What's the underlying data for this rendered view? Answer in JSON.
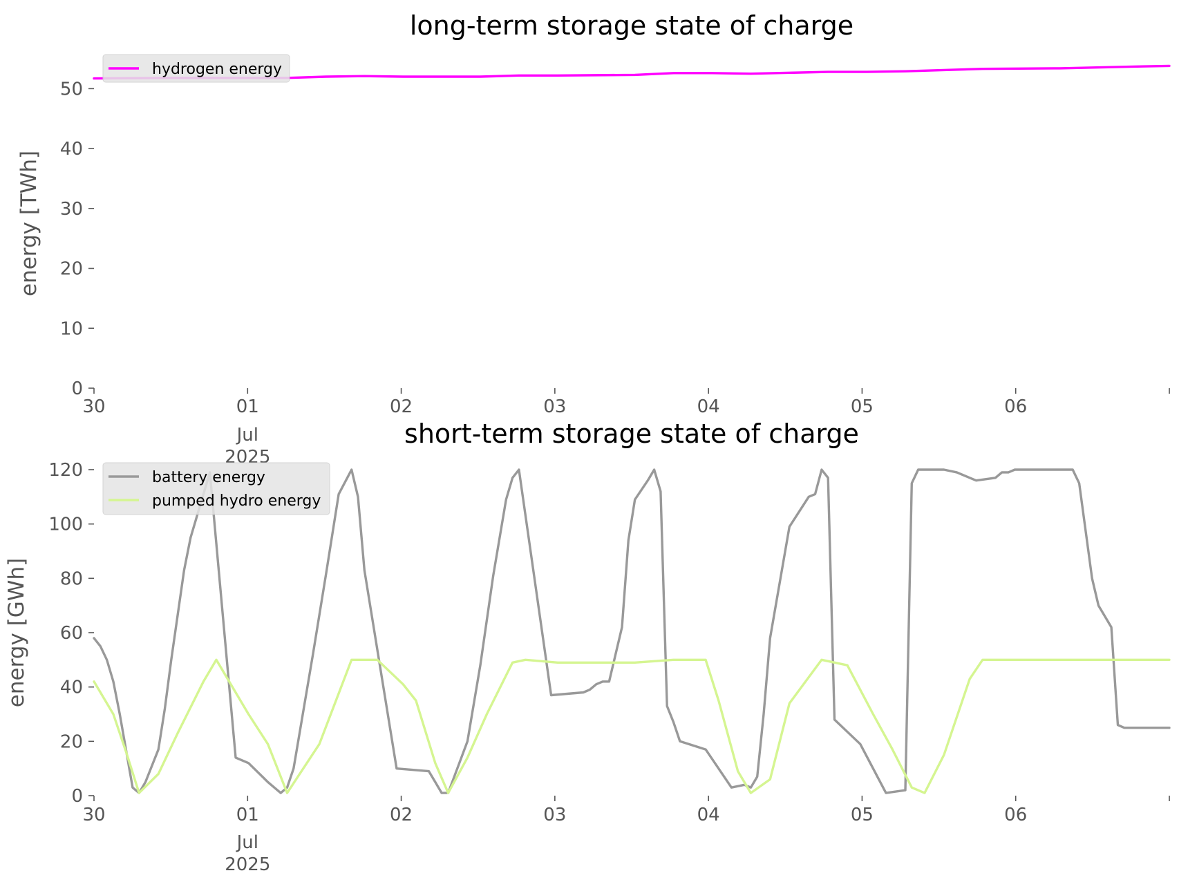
{
  "chart_data": [
    {
      "type": "line",
      "title": "long-term storage state of charge",
      "xlabel": "",
      "ylabel": "energy [TWh]",
      "ylim": [
        0,
        55
      ],
      "xlim": [
        "2025-06-30T00:00",
        "2025-07-06T23:00"
      ],
      "yticks": [
        "0",
        "10",
        "20",
        "30",
        "40",
        "50"
      ],
      "xticks": [
        {
          "lines": [
            "30"
          ]
        },
        {
          "lines": [
            "01",
            "Jul",
            "2025"
          ]
        },
        {
          "lines": [
            "02"
          ]
        },
        {
          "lines": [
            "03"
          ]
        },
        {
          "lines": [
            "04"
          ]
        },
        {
          "lines": [
            "05"
          ]
        },
        {
          "lines": [
            "06"
          ]
        },
        {
          "lines": [
            ""
          ]
        }
      ],
      "grid": false,
      "legend_position": "top-left",
      "series": [
        {
          "name": "hydrogen energy",
          "color": "#ff00ff",
          "x": [
            "2025-06-30T00:00",
            "2025-06-30T12:00",
            "2025-07-01T00:00",
            "2025-07-01T06:00",
            "2025-07-01T12:00",
            "2025-07-01T18:00",
            "2025-07-02T00:00",
            "2025-07-02T12:00",
            "2025-07-02T18:00",
            "2025-07-03T00:00",
            "2025-07-03T12:00",
            "2025-07-03T18:00",
            "2025-07-04T00:00",
            "2025-07-04T06:00",
            "2025-07-04T18:00",
            "2025-07-05T00:00",
            "2025-07-05T06:00",
            "2025-07-05T18:00",
            "2025-07-06T06:00",
            "2025-07-06T18:00",
            "2025-07-06T23:00"
          ],
          "values": [
            51.7,
            51.8,
            51.8,
            51.8,
            52.0,
            52.1,
            52.0,
            52.0,
            52.2,
            52.2,
            52.3,
            52.6,
            52.6,
            52.5,
            52.8,
            52.8,
            52.9,
            53.3,
            53.4,
            53.7,
            53.8
          ]
        }
      ]
    },
    {
      "type": "line",
      "title": "short-term storage state of charge",
      "xlabel": "",
      "ylabel": "energy [GWh]",
      "ylim": [
        0,
        120
      ],
      "xlim": [
        "2025-06-30T00:00",
        "2025-07-06T23:00"
      ],
      "yticks": [
        "0",
        "20",
        "40",
        "60",
        "80",
        "100",
        "120"
      ],
      "xticks": [
        {
          "lines": [
            "30"
          ]
        },
        {
          "lines": [
            "01",
            "Jul",
            "2025"
          ]
        },
        {
          "lines": [
            "02"
          ]
        },
        {
          "lines": [
            "03"
          ]
        },
        {
          "lines": [
            "04"
          ]
        },
        {
          "lines": [
            "05"
          ]
        },
        {
          "lines": [
            "06"
          ]
        },
        {
          "lines": [
            ""
          ]
        }
      ],
      "grid": false,
      "legend_position": "top-left",
      "series": [
        {
          "name": "battery energy",
          "color": "#999999",
          "x": [
            "2025-06-30T00:00",
            "2025-06-30T01:00",
            "2025-06-30T02:00",
            "2025-06-30T03:00",
            "2025-06-30T04:00",
            "2025-06-30T06:00",
            "2025-06-30T07:00",
            "2025-06-30T08:00",
            "2025-06-30T10:00",
            "2025-06-30T11:00",
            "2025-06-30T12:00",
            "2025-06-30T14:00",
            "2025-06-30T15:00",
            "2025-06-30T17:00",
            "2025-06-30T18:00",
            "2025-06-30T22:00",
            "2025-07-01T00:00",
            "2025-07-01T03:00",
            "2025-07-01T05:00",
            "2025-07-01T06:00",
            "2025-07-01T07:00",
            "2025-07-01T10:00",
            "2025-07-01T12:00",
            "2025-07-01T14:00",
            "2025-07-01T16:00",
            "2025-07-01T17:00",
            "2025-07-01T18:00",
            "2025-07-01T23:00",
            "2025-07-02T04:00",
            "2025-07-02T05:00",
            "2025-07-02T06:00",
            "2025-07-02T07:00",
            "2025-07-02T10:00",
            "2025-07-02T12:00",
            "2025-07-02T14:00",
            "2025-07-02T16:00",
            "2025-07-02T17:00",
            "2025-07-02T18:00",
            "2025-07-02T23:00",
            "2025-07-03T04:00",
            "2025-07-03T05:00",
            "2025-07-03T06:00",
            "2025-07-03T07:00",
            "2025-07-03T08:00",
            "2025-07-03T10:00",
            "2025-07-03T11:00",
            "2025-07-03T12:00",
            "2025-07-03T14:00",
            "2025-07-03T15:00",
            "2025-07-03T16:00",
            "2025-07-03T17:00",
            "2025-07-03T18:00",
            "2025-07-03T19:00",
            "2025-07-03T23:00",
            "2025-07-04T03:00",
            "2025-07-04T05:00",
            "2025-07-04T06:00",
            "2025-07-04T07:00",
            "2025-07-04T08:00",
            "2025-07-04T09:00",
            "2025-07-04T12:00",
            "2025-07-04T15:00",
            "2025-07-04T16:00",
            "2025-07-04T17:00",
            "2025-07-04T18:00",
            "2025-07-04T19:00",
            "2025-07-04T23:00",
            "2025-07-05T01:00",
            "2025-07-05T03:00",
            "2025-07-05T06:00",
            "2025-07-05T07:00",
            "2025-07-05T08:00",
            "2025-07-05T09:00",
            "2025-07-05T12:00",
            "2025-07-05T14:00",
            "2025-07-05T16:00",
            "2025-07-05T17:00",
            "2025-07-05T20:00",
            "2025-07-05T21:00",
            "2025-07-05T22:00",
            "2025-07-05T23:00",
            "2025-07-06T08:00",
            "2025-07-06T09:00",
            "2025-07-06T11:00",
            "2025-07-06T12:00",
            "2025-07-06T14:00",
            "2025-07-06T15:00",
            "2025-07-06T16:00",
            "2025-07-06T18:00",
            "2025-07-06T23:00"
          ],
          "values": [
            58,
            55,
            50,
            42,
            30,
            3,
            1,
            5,
            17,
            32,
            50,
            83,
            95,
            111,
            119,
            14,
            12,
            5,
            1,
            3,
            10,
            52,
            81,
            111,
            120,
            110,
            83,
            10,
            9,
            5,
            1,
            1,
            20,
            48,
            81,
            109,
            117,
            120,
            37,
            38,
            39,
            41,
            42,
            42,
            62,
            94,
            109,
            116,
            120,
            112,
            33,
            27,
            20,
            17,
            3,
            4,
            3,
            7,
            30,
            58,
            99,
            110,
            111,
            120,
            117,
            28,
            19,
            10,
            1,
            2,
            115,
            120,
            120,
            120,
            119,
            117,
            116,
            117,
            119,
            119,
            120,
            120,
            115,
            80,
            70,
            62,
            26,
            25,
            25,
            25
          ],
          "note": ""
        },
        {
          "name": "pumped hydro energy",
          "color": "#d5f591",
          "x": [
            "2025-06-30T00:00",
            "2025-06-30T03:00",
            "2025-06-30T05:00",
            "2025-06-30T07:00",
            "2025-06-30T10:00",
            "2025-06-30T13:00",
            "2025-06-30T17:00",
            "2025-06-30T19:00",
            "2025-07-01T00:00",
            "2025-07-01T03:00",
            "2025-07-01T06:00",
            "2025-07-01T11:00",
            "2025-07-01T16:00",
            "2025-07-01T20:00",
            "2025-07-02T00:00",
            "2025-07-02T02:00",
            "2025-07-02T05:00",
            "2025-07-02T07:00",
            "2025-07-02T10:00",
            "2025-07-02T13:00",
            "2025-07-02T17:00",
            "2025-07-02T19:00",
            "2025-07-03T00:00",
            "2025-07-03T12:00",
            "2025-07-03T18:00",
            "2025-07-03T23:00",
            "2025-07-04T01:00",
            "2025-07-04T04:00",
            "2025-07-04T06:00",
            "2025-07-04T09:00",
            "2025-07-04T12:00",
            "2025-07-04T17:00",
            "2025-07-04T21:00",
            "2025-07-05T01:00",
            "2025-07-05T04:00",
            "2025-07-05T07:00",
            "2025-07-05T09:00",
            "2025-07-05T12:00",
            "2025-07-05T16:00",
            "2025-07-05T18:00",
            "2025-07-06T23:00"
          ],
          "values": [
            42,
            30,
            16,
            1,
            8,
            23,
            42,
            50,
            30,
            19,
            1,
            19,
            50,
            50,
            41,
            35,
            12,
            1,
            14,
            30,
            49,
            50,
            49,
            49,
            50,
            50,
            35,
            9,
            1,
            6,
            34,
            50,
            48,
            30,
            17,
            3,
            1,
            15,
            43,
            50,
            50
          ]
        }
      ]
    }
  ]
}
